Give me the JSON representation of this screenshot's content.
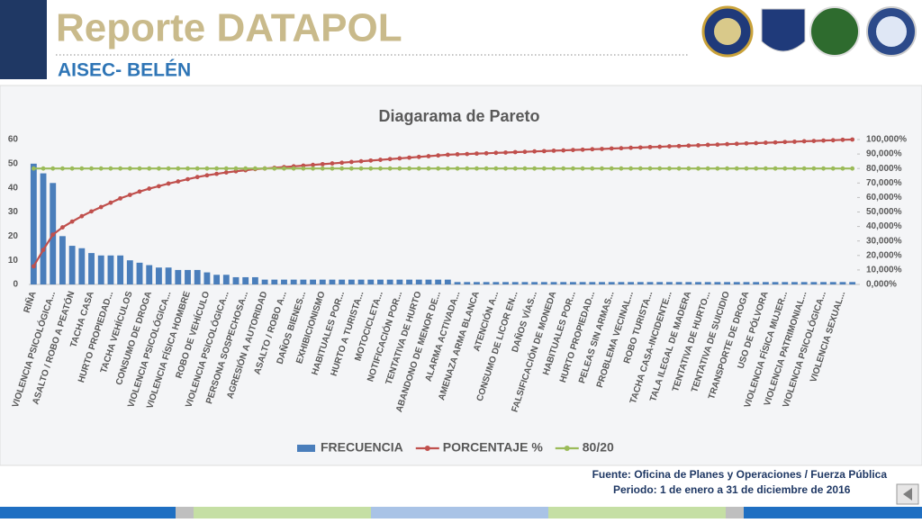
{
  "header": {
    "title": "Reporte DATAPOL",
    "subtitle": "AISEC- BELÉN"
  },
  "footer": {
    "source": "Fuente: Oficina de Planes y Operaciones / Fuerza Pública",
    "period": "Periodo: 1 de enero a 31 de diciembre de 2016"
  },
  "chart_data": {
    "type": "pareto",
    "title": "Diagarama de Pareto",
    "grid": false,
    "legend": "bottom",
    "categories": [
      "RIÑA",
      null,
      "VIOLENCIA PSICOLÓGICA...",
      null,
      "ASALTO / ROBO A PEATÓN",
      null,
      "TACHA CASA",
      null,
      "HURTO PROPIEDAD...",
      null,
      "TACHA VEHÍCULOS",
      null,
      "CONSUMO DE DROGA",
      null,
      "VIOLENCIA PSICOLÓGICA...",
      null,
      "VIOLENCIA FÍSICA HOMBRE",
      null,
      "ROBO DE VEHÍCULO",
      null,
      "VIOLENCIA PSICOLÓGICA...",
      null,
      "PERSONA SOSPECHOSA...",
      null,
      "AGRESIÓN A AUTORIDAD",
      null,
      "ASALTO / ROBO A...",
      null,
      "DAÑOS BIENES...",
      null,
      "EXHIBICIONISMO",
      null,
      "HABITUALES POR...",
      null,
      "HURTO A TURISTA...",
      null,
      "MOTOCICLETA...",
      null,
      "NOTIFICACIÓN POR...",
      null,
      "TENTATIVA DE HURTO",
      null,
      "ABANDONO DE MENOR DE...",
      null,
      "ALARMA ACTIVADA...",
      null,
      "AMENAZA ARMA BLANCA",
      null,
      "ATENCIÓN A...",
      null,
      "CONSUMO DE LICOR EN...",
      null,
      "DAÑOS VÍAS...",
      null,
      "FALSIFICACIÓN DE MONEDA",
      null,
      "HABITUALES POR...",
      null,
      "HURTO PROPIEDAD...",
      null,
      "PELEAS SIN ARMAS...",
      null,
      "PROBLEMA VECINAL...",
      null,
      "ROBO TURISTA...",
      null,
      "TACHA CASA-INCIDENTE...",
      null,
      "TALA ILEGAL DE MADERA",
      null,
      "TENTATIVA DE HURTO...",
      null,
      "TENTATIVA DE SUICIDIO",
      null,
      "TRANSPORTE DE DROGA",
      null,
      "USO DE PÓLVORA",
      null,
      "VIOLENCIA FÍSICA MUJER...",
      null,
      "VIOLENCIA PATRIMONIAL...",
      null,
      "VIOLENCIA PSICOLÓGICA...",
      null,
      "VIOLENCIA SEXUAL...",
      null
    ],
    "series": [
      {
        "name": "FRECUENCIA",
        "kind": "bar",
        "color": "#4a7ebb",
        "values": [
          50,
          46,
          42,
          20,
          16,
          15,
          13,
          12,
          12,
          12,
          10,
          9,
          8,
          7,
          7,
          6,
          6,
          6,
          5,
          4,
          4,
          3,
          3,
          3,
          2,
          2,
          2,
          2,
          2,
          2,
          2,
          2,
          2,
          2,
          2,
          2,
          2,
          2,
          2,
          2,
          2,
          2,
          2,
          2,
          1,
          1,
          1,
          1,
          1,
          1,
          1,
          1,
          1,
          1,
          1,
          1,
          1,
          1,
          1,
          1,
          1,
          1,
          1,
          1,
          1,
          1,
          1,
          1,
          1,
          1,
          1,
          1,
          1,
          1,
          1,
          1,
          1,
          1,
          1,
          1,
          1,
          1,
          1,
          1,
          1,
          1
        ]
      },
      {
        "name": "PORCENTAJE %",
        "kind": "line",
        "axis": "y2",
        "color": "#c0504d",
        "values": [
          12.5,
          23.9,
          34.4,
          39.4,
          43.4,
          47.1,
          50.4,
          53.4,
          56.4,
          59.4,
          61.8,
          64.1,
          66.1,
          67.8,
          69.6,
          71.1,
          72.6,
          74.1,
          75.3,
          76.3,
          77.3,
          78.1,
          78.8,
          79.6,
          80.0,
          80.5,
          81.0,
          81.5,
          82.0,
          82.5,
          83.0,
          83.5,
          84.0,
          84.5,
          85.0,
          85.5,
          86.0,
          86.5,
          87.0,
          87.5,
          88.0,
          88.5,
          89.0,
          89.5,
          89.8,
          90.0,
          90.3,
          90.5,
          90.8,
          91.0,
          91.3,
          91.5,
          91.8,
          92.0,
          92.3,
          92.5,
          92.8,
          93.0,
          93.3,
          93.5,
          93.8,
          94.0,
          94.3,
          94.5,
          94.8,
          95.0,
          95.3,
          95.5,
          95.8,
          96.0,
          96.3,
          96.5,
          96.8,
          97.0,
          97.3,
          97.5,
          97.8,
          98.0,
          98.3,
          98.5,
          98.8,
          99.0,
          99.3,
          99.5,
          99.8,
          100
        ]
      },
      {
        "name": "80/20",
        "kind": "line",
        "axis": "y2",
        "color": "#9bbb59",
        "values": [
          80,
          80,
          80,
          80,
          80,
          80,
          80,
          80,
          80,
          80,
          80,
          80,
          80,
          80,
          80,
          80,
          80,
          80,
          80,
          80,
          80,
          80,
          80,
          80,
          80,
          80,
          80,
          80,
          80,
          80,
          80,
          80,
          80,
          80,
          80,
          80,
          80,
          80,
          80,
          80,
          80,
          80,
          80,
          80,
          80,
          80,
          80,
          80,
          80,
          80,
          80,
          80,
          80,
          80,
          80,
          80,
          80,
          80,
          80,
          80,
          80,
          80,
          80,
          80,
          80,
          80,
          80,
          80,
          80,
          80,
          80,
          80,
          80,
          80,
          80,
          80,
          80,
          80,
          80,
          80,
          80,
          80,
          80,
          80,
          80,
          80
        ]
      }
    ],
    "ylim": [
      0,
      60
    ],
    "yticks": [
      0,
      10,
      20,
      30,
      40,
      50,
      60
    ],
    "y2lim": [
      0,
      100
    ],
    "y2ticks": [
      {
        "value": 0,
        "label": "0,000%"
      },
      {
        "value": 10,
        "label": "10,000%"
      },
      {
        "value": 20,
        "label": "20,000%"
      },
      {
        "value": 30,
        "label": "30,000%"
      },
      {
        "value": 40,
        "label": "40,000%"
      },
      {
        "value": 50,
        "label": "50,000%"
      },
      {
        "value": 60,
        "label": "60,000%"
      },
      {
        "value": 70,
        "label": "70,000%"
      },
      {
        "value": 80,
        "label": "80,000%"
      },
      {
        "value": 90,
        "label": "90,000%"
      },
      {
        "value": 100,
        "label": "100,000%"
      }
    ]
  }
}
